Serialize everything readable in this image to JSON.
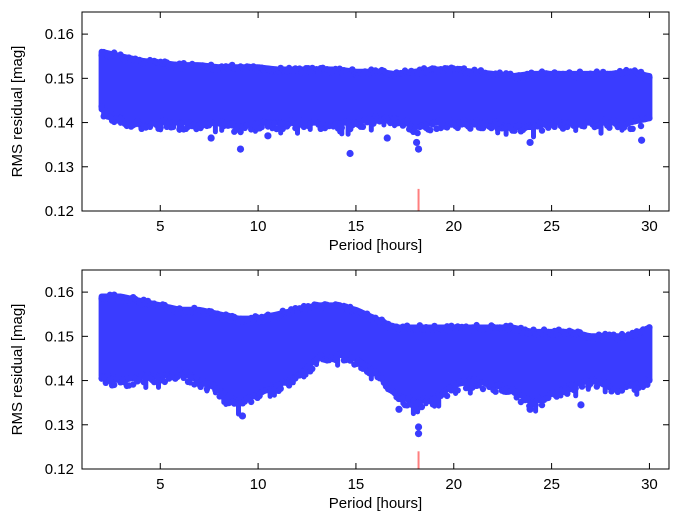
{
  "chart_data": [
    {
      "type": "scatter",
      "title": "",
      "xlabel": "Period [hours]",
      "ylabel": "RMS residual [mag]",
      "xlim": [
        1,
        31
      ],
      "ylim": [
        0.12,
        0.165
      ],
      "xticks": [
        5,
        10,
        15,
        20,
        25,
        30
      ],
      "yticks": [
        0.12,
        0.13,
        0.14,
        0.15,
        0.16
      ],
      "xtick_labels": [
        "5",
        "10",
        "15",
        "20",
        "25",
        "30"
      ],
      "ytick_labels": [
        "0.12",
        "0.13",
        "0.14",
        "0.15",
        "0.16"
      ],
      "grid": false,
      "series": [
        {
          "color": "#3a3cff",
          "x_range": [
            2,
            30
          ],
          "envelope": {
            "x": [
              2,
              3,
              4,
              5,
              6,
              7,
              8,
              9,
              10,
              11,
              12,
              13,
              14,
              15,
              16,
              17,
              18,
              19,
              20,
              21,
              22,
              23,
              24,
              25,
              26,
              27,
              28,
              29,
              30
            ],
            "upper": [
              0.156,
              0.155,
              0.154,
              0.1535,
              0.153,
              0.153,
              0.1525,
              0.1525,
              0.1525,
              0.152,
              0.152,
              0.152,
              0.152,
              0.1515,
              0.1515,
              0.151,
              0.1515,
              0.152,
              0.152,
              0.1515,
              0.151,
              0.1505,
              0.151,
              0.151,
              0.151,
              0.151,
              0.151,
              0.1515,
              0.1505
            ],
            "lower": [
              0.143,
              0.141,
              0.14,
              0.14,
              0.14,
              0.14,
              0.14,
              0.139,
              0.14,
              0.14,
              0.14,
              0.14,
              0.14,
              0.14,
              0.141,
              0.141,
              0.139,
              0.14,
              0.14,
              0.14,
              0.14,
              0.139,
              0.139,
              0.14,
              0.14,
              0.14,
              0.14,
              0.14,
              0.141
            ]
          },
          "outliers": [
            {
              "x": 9.1,
              "y": 0.134
            },
            {
              "x": 14.7,
              "y": 0.133
            },
            {
              "x": 18.2,
              "y": 0.134
            },
            {
              "x": 18.1,
              "y": 0.1355
            },
            {
              "x": 23.9,
              "y": 0.1355
            },
            {
              "x": 29.6,
              "y": 0.136
            },
            {
              "x": 7.6,
              "y": 0.1365
            },
            {
              "x": 10.5,
              "y": 0.137
            },
            {
              "x": 16.6,
              "y": 0.1365
            }
          ]
        }
      ],
      "marker": {
        "x": 18.2,
        "y_range": [
          0.12,
          0.125
        ],
        "color": "#ff7f7f"
      }
    },
    {
      "type": "scatter",
      "title": "",
      "xlabel": "Period [hours]",
      "ylabel": "RMS residual [mag]",
      "xlim": [
        1,
        31
      ],
      "ylim": [
        0.12,
        0.165
      ],
      "xticks": [
        5,
        10,
        15,
        20,
        25,
        30
      ],
      "yticks": [
        0.12,
        0.13,
        0.14,
        0.15,
        0.16
      ],
      "xtick_labels": [
        "5",
        "10",
        "15",
        "20",
        "25",
        "30"
      ],
      "ytick_labels": [
        "0.12",
        "0.13",
        "0.14",
        "0.15",
        "0.16"
      ],
      "grid": false,
      "series": [
        {
          "color": "#3a3cff",
          "x_range": [
            2,
            30
          ],
          "envelope": {
            "x": [
              2,
              3,
              4,
              5,
              6,
              7,
              8,
              9,
              10,
              11,
              12,
              13,
              14,
              15,
              16,
              17,
              18,
              19,
              20,
              21,
              22,
              23,
              24,
              25,
              26,
              27,
              28,
              29,
              30
            ],
            "upper": [
              0.159,
              0.159,
              0.158,
              0.157,
              0.156,
              0.156,
              0.155,
              0.154,
              0.154,
              0.155,
              0.156,
              0.157,
              0.157,
              0.156,
              0.154,
              0.152,
              0.152,
              0.152,
              0.152,
              0.152,
              0.152,
              0.152,
              0.151,
              0.151,
              0.151,
              0.15,
              0.15,
              0.15,
              0.152
            ],
            "lower": [
              0.141,
              0.14,
              0.141,
              0.141,
              0.142,
              0.14,
              0.138,
              0.135,
              0.137,
              0.139,
              0.141,
              0.145,
              0.146,
              0.145,
              0.142,
              0.137,
              0.135,
              0.136,
              0.139,
              0.14,
              0.139,
              0.138,
              0.135,
              0.137,
              0.139,
              0.14,
              0.139,
              0.139,
              0.14
            ]
          },
          "outliers": [
            {
              "x": 9.2,
              "y": 0.132
            },
            {
              "x": 18.2,
              "y": 0.128
            },
            {
              "x": 18.2,
              "y": 0.1295
            },
            {
              "x": 17.2,
              "y": 0.1335
            },
            {
              "x": 23.9,
              "y": 0.1335
            },
            {
              "x": 26.5,
              "y": 0.1345
            },
            {
              "x": 8.5,
              "y": 0.135
            }
          ]
        }
      ],
      "marker": {
        "x": 18.2,
        "y_range": [
          0.12,
          0.124
        ],
        "color": "#ff7f7f"
      }
    }
  ]
}
